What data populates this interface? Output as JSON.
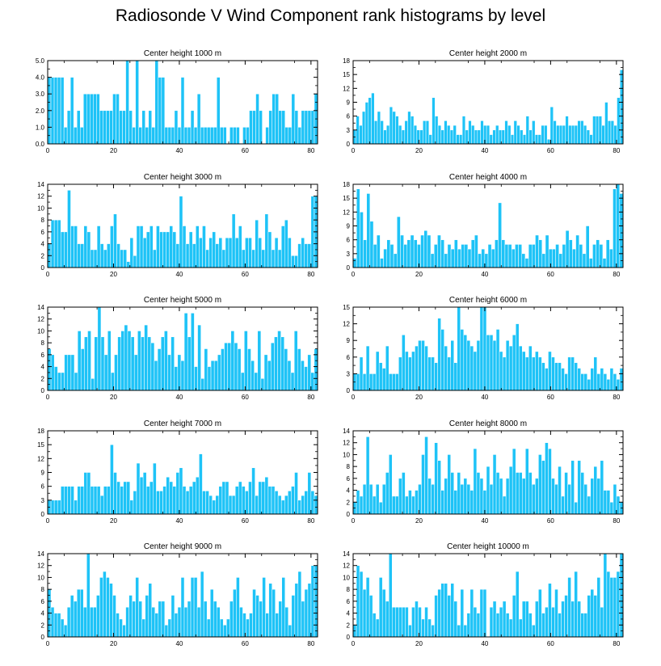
{
  "figure_title": "Radiosonde V Wind Component rank histograms by level",
  "colors": {
    "bar_fill": "#1ec3f7",
    "bar_edge": "#ffffff",
    "axis": "#000000",
    "background": "#ffffff"
  },
  "chart_data": [
    {
      "type": "bar",
      "title": "Center height 1000 m",
      "xlabel": "",
      "ylabel": "",
      "xlim": [
        0,
        82
      ],
      "ylim": [
        0,
        5
      ],
      "xticks": [
        "0",
        "20",
        "40",
        "60",
        "80"
      ],
      "yticks": [
        "0.0",
        "1.0",
        "2.0",
        "3.0",
        "4.0",
        "5.0"
      ],
      "values": [
        4,
        4,
        4,
        4,
        4,
        1,
        2,
        4,
        1,
        2,
        1,
        3,
        3,
        3,
        3,
        3,
        2,
        2,
        2,
        2,
        3,
        3,
        2,
        2,
        5,
        2,
        1,
        5,
        1,
        2,
        1,
        2,
        1,
        5,
        4,
        4,
        1,
        1,
        1,
        2,
        1,
        4,
        1,
        1,
        2,
        1,
        3,
        1,
        1,
        1,
        1,
        1,
        4,
        1,
        1,
        0,
        1,
        1,
        1,
        0,
        1,
        1,
        2,
        2,
        3,
        2,
        0,
        1,
        2,
        3,
        3,
        2,
        2,
        1,
        1,
        3,
        2,
        1,
        2,
        2,
        2,
        2,
        3
      ]
    },
    {
      "type": "bar",
      "title": "Center height 2000 m",
      "xlabel": "",
      "ylabel": "",
      "xlim": [
        0,
        82
      ],
      "ylim": [
        0,
        18
      ],
      "xticks": [
        "0",
        "20",
        "40",
        "60",
        "80"
      ],
      "yticks": [
        "0",
        "3",
        "6",
        "9",
        "12",
        "15",
        "18"
      ],
      "values": [
        3,
        6,
        4,
        7,
        9,
        10,
        11,
        5,
        7,
        5,
        3,
        4,
        8,
        7,
        6,
        4,
        3,
        5,
        7,
        6,
        4,
        3,
        3,
        5,
        5,
        2,
        10,
        6,
        4,
        3,
        5,
        4,
        3,
        4,
        2,
        2,
        6,
        3,
        5,
        4,
        3,
        3,
        5,
        4,
        4,
        2,
        3,
        4,
        3,
        3,
        5,
        4,
        2,
        5,
        4,
        3,
        2,
        6,
        3,
        5,
        2,
        2,
        4,
        4,
        1,
        8,
        5,
        4,
        4,
        4,
        6,
        4,
        4,
        4,
        5,
        5,
        4,
        3,
        2,
        6,
        6,
        6,
        4,
        9,
        5,
        5,
        4,
        10,
        16
      ]
    },
    {
      "type": "bar",
      "title": "Center height 3000 m",
      "xlabel": "",
      "ylabel": "",
      "xlim": [
        0,
        82
      ],
      "ylim": [
        0,
        14
      ],
      "xticks": [
        "0",
        "20",
        "40",
        "60",
        "80"
      ],
      "yticks": [
        "0",
        "2",
        "4",
        "6",
        "8",
        "10",
        "12",
        "14"
      ],
      "values": [
        4,
        8,
        8,
        8,
        6,
        6,
        13,
        7,
        7,
        4,
        4,
        7,
        6,
        3,
        3,
        7,
        4,
        3,
        4,
        7,
        9,
        4,
        3,
        3,
        1,
        5,
        2,
        7,
        7,
        5,
        6,
        7,
        3,
        7,
        6,
        6,
        6,
        7,
        6,
        4,
        12,
        7,
        4,
        6,
        4,
        7,
        5,
        7,
        3,
        5,
        6,
        4,
        5,
        3,
        5,
        5,
        9,
        5,
        7,
        3,
        5,
        5,
        3,
        8,
        5,
        3,
        9,
        6,
        3,
        5,
        3,
        7,
        8,
        5,
        2,
        2,
        4,
        5,
        4,
        4,
        12,
        12
      ]
    },
    {
      "type": "bar",
      "title": "Center height 4000 m",
      "xlabel": "",
      "ylabel": "",
      "xlim": [
        0,
        82
      ],
      "ylim": [
        0,
        18
      ],
      "xticks": [
        "0",
        "20",
        "40",
        "60",
        "80"
      ],
      "yticks": [
        "0",
        "3",
        "6",
        "9",
        "12",
        "15",
        "18"
      ],
      "values": [
        2,
        17,
        12,
        6,
        16,
        10,
        5,
        7,
        2,
        4,
        6,
        5,
        3,
        11,
        7,
        5,
        6,
        7,
        6,
        5,
        7,
        8,
        7,
        3,
        5,
        7,
        6,
        3,
        5,
        4,
        6,
        4,
        5,
        5,
        4,
        6,
        7,
        3,
        4,
        3,
        5,
        4,
        6,
        14,
        6,
        5,
        5,
        4,
        5,
        5,
        3,
        2,
        5,
        5,
        7,
        6,
        3,
        7,
        4,
        4,
        5,
        3,
        5,
        8,
        6,
        4,
        7,
        5,
        3,
        9,
        2,
        5,
        6,
        5,
        2,
        6,
        4,
        17,
        18,
        16
      ]
    },
    {
      "type": "bar",
      "title": "Center height 5000 m",
      "xlabel": "",
      "ylabel": "",
      "xlim": [
        0,
        82
      ],
      "ylim": [
        0,
        14
      ],
      "xticks": [
        "0",
        "20",
        "40",
        "60",
        "80"
      ],
      "yticks": [
        "0",
        "2",
        "4",
        "6",
        "8",
        "10",
        "12",
        "14"
      ],
      "values": [
        7,
        6,
        4,
        3,
        3,
        6,
        6,
        6,
        3,
        10,
        7,
        9,
        10,
        2,
        9,
        14,
        9,
        6,
        10,
        3,
        6,
        9,
        10,
        11,
        10,
        9,
        6,
        10,
        9,
        11,
        9,
        8,
        5,
        7,
        9,
        10,
        6,
        9,
        4,
        6,
        5,
        13,
        9,
        13,
        4,
        11,
        2,
        7,
        4,
        5,
        5,
        6,
        7,
        8,
        8,
        10,
        8,
        7,
        3,
        10,
        7,
        5,
        3,
        10,
        2,
        6,
        5,
        8,
        9,
        10,
        9,
        7,
        5,
        3,
        10,
        7,
        5,
        4,
        6,
        3,
        7
      ]
    },
    {
      "type": "bar",
      "title": "Center height 6000 m",
      "xlabel": "",
      "ylabel": "",
      "xlim": [
        0,
        82
      ],
      "ylim": [
        0,
        15
      ],
      "xticks": [
        "0",
        "20",
        "40",
        "60",
        "80"
      ],
      "yticks": [
        "0",
        "3",
        "6",
        "9",
        "12",
        "15"
      ],
      "values": [
        3,
        3,
        6,
        3,
        8,
        3,
        3,
        7,
        5,
        4,
        8,
        3,
        3,
        3,
        6,
        10,
        7,
        6,
        7,
        8,
        9,
        9,
        8,
        6,
        6,
        5,
        13,
        11,
        8,
        6,
        9,
        5,
        15,
        11,
        10,
        9,
        8,
        7,
        9,
        15,
        15,
        10,
        10,
        9,
        11,
        7,
        6,
        9,
        8,
        10,
        12,
        8,
        7,
        6,
        8,
        6,
        7,
        6,
        5,
        4,
        7,
        6,
        5,
        5,
        4,
        3,
        6,
        6,
        5,
        4,
        3,
        3,
        2,
        4,
        6,
        3,
        4,
        3,
        2,
        4,
        3,
        2,
        4
      ]
    },
    {
      "type": "bar",
      "title": "Center height 7000 m",
      "xlabel": "",
      "ylabel": "",
      "xlim": [
        0,
        82
      ],
      "ylim": [
        0,
        18
      ],
      "xticks": [
        "0",
        "20",
        "40",
        "60",
        "80"
      ],
      "yticks": [
        "0",
        "3",
        "6",
        "9",
        "12",
        "15",
        "18"
      ],
      "values": [
        3,
        3,
        3,
        3,
        6,
        6,
        6,
        6,
        3,
        6,
        6,
        9,
        9,
        6,
        6,
        6,
        4,
        6,
        6,
        15,
        9,
        7,
        6,
        7,
        7,
        3,
        5,
        11,
        8,
        9,
        6,
        7,
        11,
        5,
        5,
        6,
        8,
        7,
        6,
        9,
        10,
        6,
        5,
        6,
        7,
        8,
        13,
        5,
        5,
        4,
        3,
        4,
        6,
        7,
        7,
        4,
        4,
        6,
        7,
        6,
        5,
        7,
        10,
        4,
        7,
        7,
        8,
        6,
        6,
        5,
        4,
        3,
        4,
        5,
        6,
        9,
        3,
        4,
        5,
        9,
        5,
        4
      ]
    },
    {
      "type": "bar",
      "title": "Center height 8000 m",
      "xlabel": "",
      "ylabel": "",
      "xlim": [
        0,
        82
      ],
      "ylim": [
        0,
        14
      ],
      "xticks": [
        "0",
        "20",
        "40",
        "60",
        "80"
      ],
      "yticks": [
        "0",
        "2",
        "4",
        "6",
        "8",
        "10",
        "12",
        "14"
      ],
      "values": [
        2,
        4,
        3,
        5,
        13,
        5,
        3,
        5,
        2,
        5,
        7,
        10,
        3,
        3,
        6,
        7,
        3,
        4,
        3,
        4,
        5,
        10,
        13,
        6,
        5,
        12,
        9,
        4,
        6,
        10,
        7,
        4,
        7,
        5,
        6,
        5,
        4,
        11,
        7,
        6,
        4,
        8,
        5,
        10,
        7,
        6,
        3,
        6,
        8,
        11,
        7,
        7,
        6,
        11,
        7,
        5,
        6,
        10,
        9,
        12,
        11,
        6,
        5,
        8,
        3,
        7,
        5,
        9,
        2,
        9,
        7,
        5,
        3,
        6,
        8,
        6,
        9,
        4,
        4,
        2,
        5,
        3,
        2
      ]
    },
    {
      "type": "bar",
      "title": "Center height 9000 m",
      "xlabel": "",
      "ylabel": "",
      "xlim": [
        0,
        82
      ],
      "ylim": [
        0,
        14
      ],
      "xticks": [
        "0",
        "20",
        "40",
        "60",
        "80"
      ],
      "yticks": [
        "0",
        "2",
        "4",
        "6",
        "8",
        "10",
        "12",
        "14"
      ],
      "values": [
        8,
        5,
        4,
        4,
        3,
        2,
        5,
        7,
        6,
        8,
        8,
        5,
        14,
        5,
        5,
        7,
        10,
        11,
        10,
        9,
        7,
        4,
        3,
        2,
        5,
        7,
        6,
        10,
        6,
        3,
        7,
        9,
        5,
        4,
        6,
        6,
        2,
        3,
        7,
        4,
        5,
        10,
        5,
        6,
        10,
        10,
        5,
        11,
        6,
        3,
        8,
        6,
        5,
        3,
        2,
        3,
        6,
        8,
        10,
        5,
        4,
        3,
        4,
        8,
        7,
        6,
        10,
        4,
        9,
        8,
        4,
        6,
        10,
        5,
        2,
        7,
        9,
        11,
        6,
        8,
        9,
        12,
        12
      ]
    },
    {
      "type": "bar",
      "title": "Center height 10000 m",
      "xlabel": "",
      "ylabel": "",
      "xlim": [
        0,
        82
      ],
      "ylim": [
        0,
        14
      ],
      "xticks": [
        "0",
        "20",
        "40",
        "60",
        "80"
      ],
      "yticks": [
        "0",
        "2",
        "4",
        "6",
        "8",
        "10",
        "12",
        "14"
      ],
      "values": [
        2,
        12,
        11,
        8,
        10,
        7,
        4,
        3,
        10,
        8,
        6,
        14,
        5,
        5,
        5,
        5,
        5,
        2,
        5,
        6,
        5,
        3,
        5,
        3,
        2,
        7,
        8,
        9,
        9,
        7,
        9,
        6,
        2,
        8,
        2,
        4,
        8,
        5,
        4,
        8,
        8,
        0,
        5,
        6,
        4,
        5,
        6,
        4,
        3,
        7,
        11,
        3,
        6,
        6,
        4,
        2,
        6,
        8,
        4,
        5,
        9,
        5,
        8,
        4,
        6,
        7,
        10,
        6,
        11,
        6,
        4,
        4,
        7,
        8,
        7,
        10,
        5,
        14,
        11,
        10,
        10,
        11,
        14
      ]
    }
  ]
}
